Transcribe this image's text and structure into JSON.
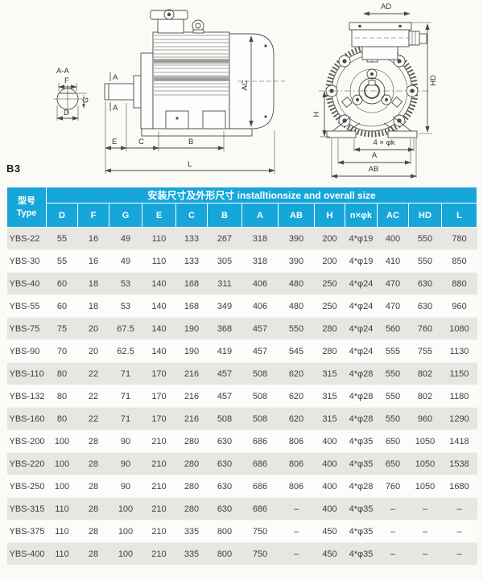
{
  "colors": {
    "header_blue": "#17a6da",
    "row_gray": "#e8e6e2",
    "row_white": "#fcfcfa",
    "page_bg": "#fbfaf6",
    "table_text": "#3f3f3f",
    "line": "#4a4a4a"
  },
  "mount_code": "B3",
  "drawing": {
    "section": "A-A",
    "f": "F",
    "g": "G",
    "d": "D",
    "cut": "A",
    "e": "E",
    "c": "C",
    "b": "B",
    "l": "L",
    "ac": "AC",
    "ad": "AD",
    "hd": "HD",
    "h": "H",
    "holes": "4 × φk",
    "a": "A",
    "ab": "AB"
  },
  "table": {
    "type_header_cn": "型号",
    "type_header_en": "Type",
    "span_header": "安装尺寸及外形尺寸 installtionsize and overall size",
    "columns": [
      "D",
      "F",
      "G",
      "E",
      "C",
      "B",
      "A",
      "AB",
      "H",
      "n×φk",
      "AC",
      "HD",
      "L"
    ],
    "rows": [
      {
        "type": "YBS-22",
        "values": [
          "55",
          "16",
          "49",
          "110",
          "133",
          "267",
          "318",
          "390",
          "200",
          "4*φ19",
          "400",
          "550",
          "780"
        ]
      },
      {
        "type": "YBS-30",
        "values": [
          "55",
          "16",
          "49",
          "110",
          "133",
          "305",
          "318",
          "390",
          "200",
          "4*φ19",
          "410",
          "550",
          "850"
        ]
      },
      {
        "type": "YBS-40",
        "values": [
          "60",
          "18",
          "53",
          "140",
          "168",
          "311",
          "406",
          "480",
          "250",
          "4*φ24",
          "470",
          "630",
          "880"
        ]
      },
      {
        "type": "YBS-55",
        "values": [
          "60",
          "18",
          "53",
          "140",
          "168",
          "349",
          "406",
          "480",
          "250",
          "4*φ24",
          "470",
          "630",
          "960"
        ]
      },
      {
        "type": "YBS-75",
        "values": [
          "75",
          "20",
          "67.5",
          "140",
          "190",
          "368",
          "457",
          "550",
          "280",
          "4*φ24",
          "560",
          "760",
          "1080"
        ]
      },
      {
        "type": "YBS-90",
        "values": [
          "70",
          "20",
          "62.5",
          "140",
          "190",
          "419",
          "457",
          "545",
          "280",
          "4*φ24",
          "555",
          "755",
          "1130"
        ]
      },
      {
        "type": "YBS-110",
        "values": [
          "80",
          "22",
          "71",
          "170",
          "216",
          "457",
          "508",
          "620",
          "315",
          "4*φ28",
          "550",
          "802",
          "1150"
        ]
      },
      {
        "type": "YBS-132",
        "values": [
          "80",
          "22",
          "71",
          "170",
          "216",
          "457",
          "508",
          "620",
          "315",
          "4*φ28",
          "550",
          "802",
          "1180"
        ]
      },
      {
        "type": "YBS-160",
        "values": [
          "80",
          "22",
          "71",
          "170",
          "216",
          "508",
          "508",
          "620",
          "315",
          "4*φ28",
          "550",
          "960",
          "1290"
        ]
      },
      {
        "type": "YBS-200",
        "values": [
          "100",
          "28",
          "90",
          "210",
          "280",
          "630",
          "686",
          "806",
          "400",
          "4*φ35",
          "650",
          "1050",
          "1418"
        ]
      },
      {
        "type": "YBS-220",
        "values": [
          "100",
          "28",
          "90",
          "210",
          "280",
          "630",
          "686",
          "806",
          "400",
          "4*φ35",
          "650",
          "1050",
          "1538"
        ]
      },
      {
        "type": "YBS-250",
        "values": [
          "100",
          "28",
          "90",
          "210",
          "280",
          "630",
          "686",
          "806",
          "400",
          "4*φ28",
          "760",
          "1050",
          "1680"
        ]
      },
      {
        "type": "YBS-315",
        "values": [
          "110",
          "28",
          "100",
          "210",
          "280",
          "630",
          "686",
          "–",
          "400",
          "4*φ35",
          "–",
          "–",
          "–"
        ]
      },
      {
        "type": "YBS-375",
        "values": [
          "110",
          "28",
          "100",
          "210",
          "335",
          "800",
          "750",
          "–",
          "450",
          "4*φ35",
          "–",
          "–",
          "–"
        ]
      },
      {
        "type": "YBS-400",
        "values": [
          "110",
          "28",
          "100",
          "210",
          "335",
          "800",
          "750",
          "–",
          "450",
          "4*φ35",
          "–",
          "–",
          "–"
        ]
      }
    ]
  }
}
